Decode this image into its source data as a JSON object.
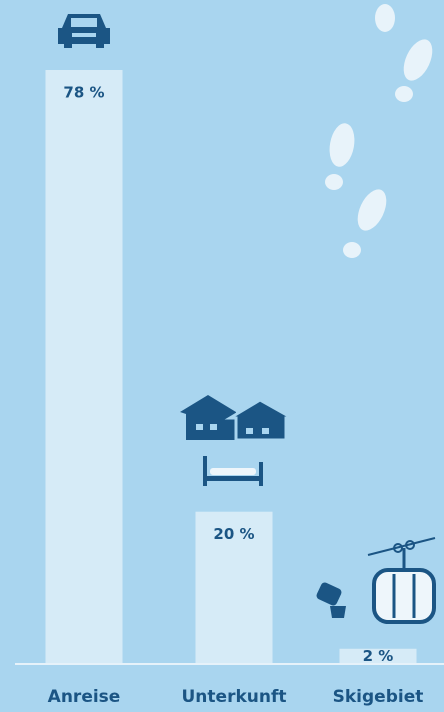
{
  "chart_data": {
    "type": "bar",
    "categories": [
      "Anreise",
      "Unterkunft",
      "Skigebiet"
    ],
    "values": [
      78,
      20,
      2
    ],
    "value_labels": [
      "78 %",
      "20 %",
      "2 %"
    ],
    "color": "#d6ebf7",
    "ylim": [
      0,
      78
    ]
  }
}
